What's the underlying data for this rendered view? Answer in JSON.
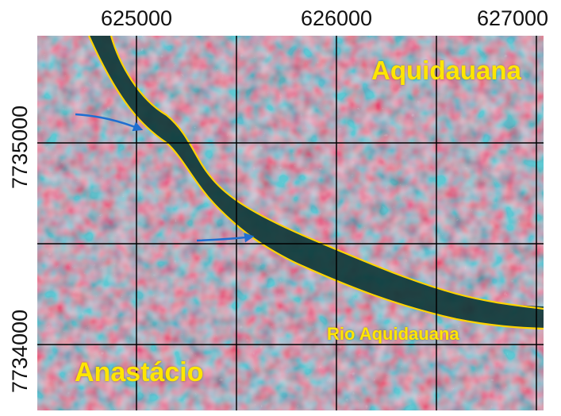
{
  "map": {
    "x_ticks": [
      "625000",
      "626000",
      "627000"
    ],
    "y_ticks": [
      "7735000",
      "7734000"
    ],
    "labels": {
      "city_north": "Aquidauana",
      "city_south": "Anastácio",
      "river": "Rio Aquidauana"
    },
    "colors": {
      "grid": "#000000",
      "river_water": "#0f3a3a",
      "river_bank_line": "#ffd400",
      "label": "#ffe600",
      "arrow": "#1f6fd1",
      "terrain_red": "#c0475c",
      "terrain_cyan": "#8fd3d3",
      "terrain_gray": "#7a8a88"
    },
    "arrows_count": 2
  }
}
